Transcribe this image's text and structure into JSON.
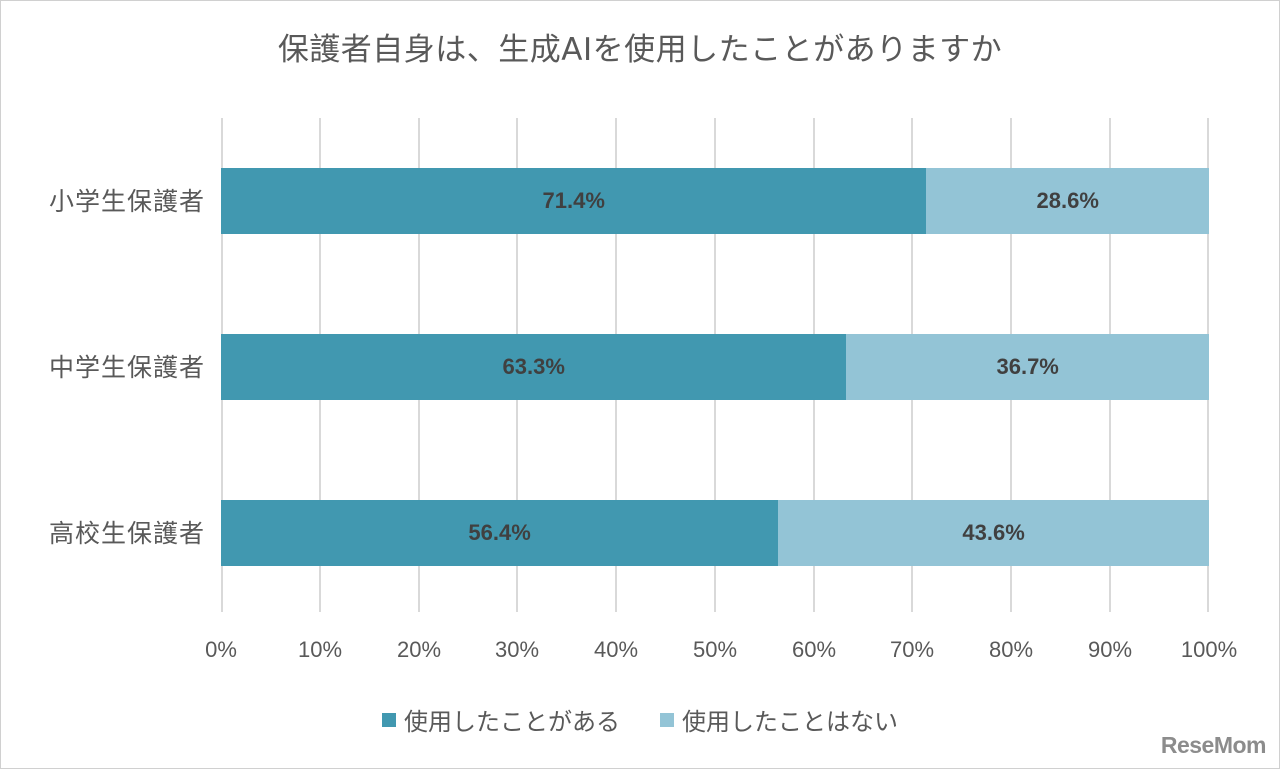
{
  "chart_data": {
    "type": "bar",
    "orientation": "horizontal",
    "stacked": "percent",
    "title": "保護者自身は、生成AIを使用したことがありますか",
    "categories": [
      "小学生保護者",
      "中学生保護者",
      "高校生保護者"
    ],
    "series": [
      {
        "name": "使用したことがある",
        "values": [
          71.4,
          63.3,
          56.4
        ],
        "labels": [
          "71.4%",
          "63.3%",
          "56.4%"
        ],
        "color": "#4198b0"
      },
      {
        "name": "使用したことはない",
        "values": [
          28.6,
          36.7,
          43.6
        ],
        "labels": [
          "28.6%",
          "36.7%",
          "43.6%"
        ],
        "color": "#93c4d6"
      }
    ],
    "xlabel": "",
    "ylabel": "",
    "xlim": [
      0,
      100
    ],
    "x_ticks": [
      "0%",
      "10%",
      "20%",
      "30%",
      "40%",
      "50%",
      "60%",
      "70%",
      "80%",
      "90%",
      "100%"
    ],
    "grid": true,
    "legend_position": "bottom"
  },
  "watermark": "ReseMom"
}
